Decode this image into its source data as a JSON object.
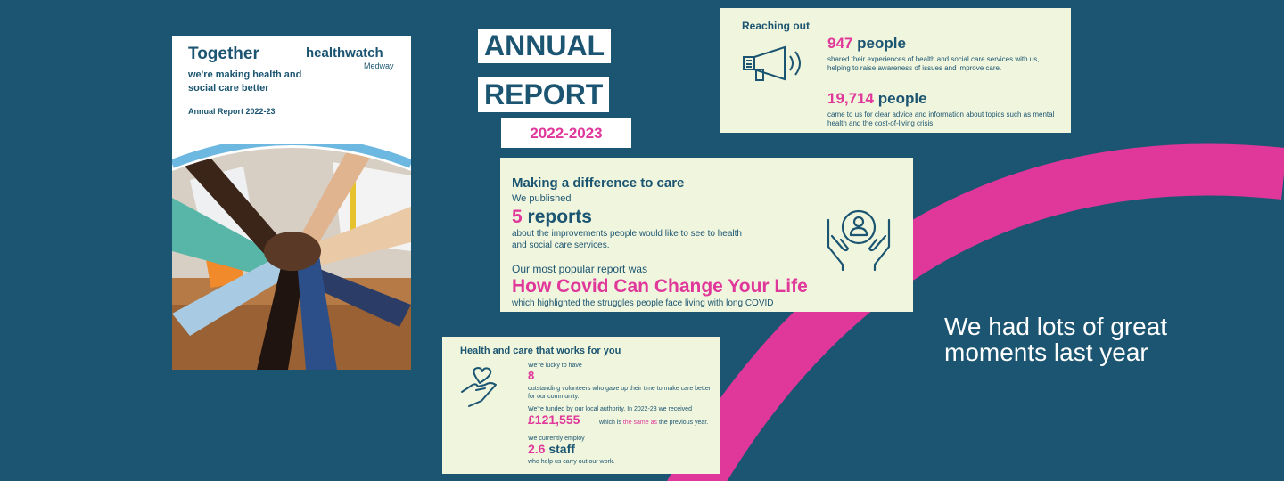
{
  "colors": {
    "background": "#1b5571",
    "pink": "#e0379a",
    "card": "#f0f5dd",
    "navy": "#1b5571"
  },
  "cover": {
    "title": "Together",
    "subtitle": "we're making health and social care better",
    "report_label": "Annual Report 2022-23",
    "logo_name": "healthwatch",
    "logo_location": "Medway",
    "photo": "hands-stacked-photo"
  },
  "heading": {
    "line1": "ANNUAL",
    "line2": "REPORT",
    "years": "2022-2023"
  },
  "reaching_out": {
    "title": "Reaching out",
    "stat1_number": "947",
    "stat1_unit": "people",
    "stat1_text": "shared their experiences of health and social care services with us, helping to raise awareness of issues and improve care.",
    "stat2_number": "19,714",
    "stat2_unit": "people",
    "stat2_text": "came to us for clear advice and information about topics such as mental health and the cost-of-living crisis.",
    "icon": "megaphone-icon"
  },
  "difference": {
    "title": "Making a difference to care",
    "published_label": "We published",
    "reports_number": "5",
    "reports_unit": "reports",
    "reports_text": "about the improvements people would like to see to health and social care services.",
    "popular_label": "Our most popular report was",
    "popular_report": "How Covid Can Change Your Life",
    "popular_text": "which highlighted the struggles people face living with long COVID",
    "icon": "hands-holding-person-icon"
  },
  "health_care": {
    "title": "Health and care that works for you",
    "lucky_text": "We're lucky to have",
    "volunteers_number": "8",
    "volunteers_text": "outstanding volunteers who gave up their time to make care better for our community.",
    "funded_text": "We're funded by our local authority. In 2022-23 we received",
    "funding_amount": "£121,555",
    "funding_prefix": "which is",
    "funding_highlight": "the same as",
    "funding_suffix": "the previous year.",
    "employ_text": "We currently employ",
    "staff_number": "2.6",
    "staff_unit": "staff",
    "staff_text": "who help us carry out our work.",
    "icon": "heart-in-hand-icon"
  },
  "moments_text": "We had lots of great moments last year"
}
